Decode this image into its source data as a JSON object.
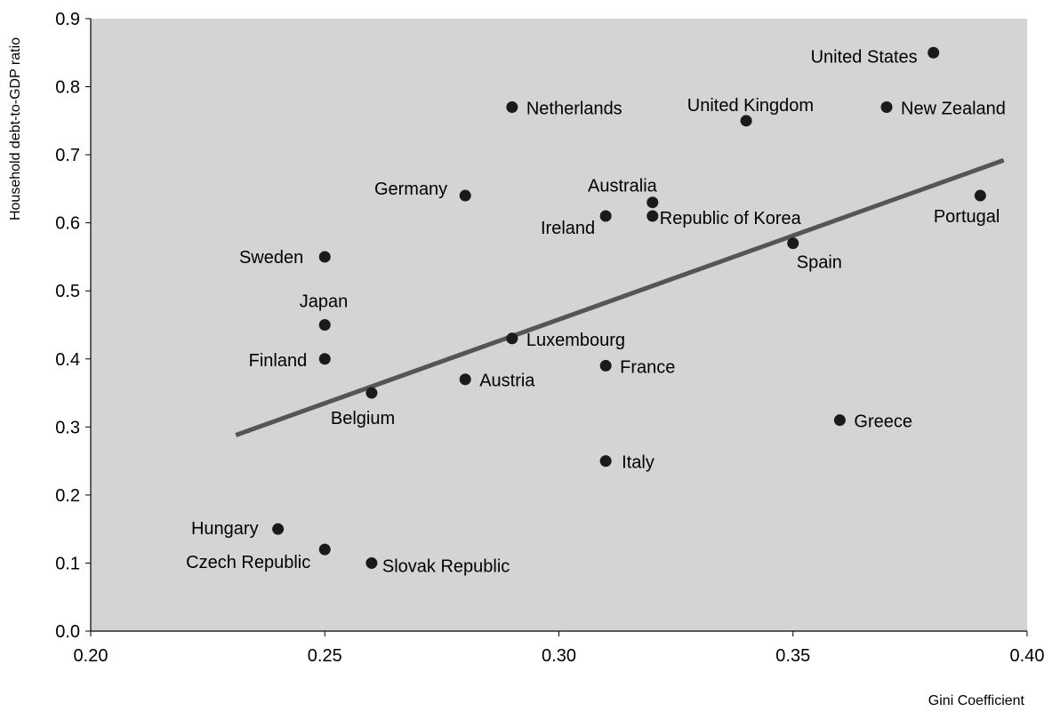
{
  "chart_data": {
    "type": "scatter",
    "title": "",
    "xlabel": "Gini Coefficient",
    "ylabel": "Household debt-to-GDP ratio",
    "xlim": [
      0.2,
      0.4
    ],
    "ylim": [
      0.0,
      0.9
    ],
    "x_ticks": [
      "0.20",
      "0.25",
      "0.30",
      "0.35",
      "0.40"
    ],
    "y_ticks": [
      "0.0",
      "0.1",
      "0.2",
      "0.3",
      "0.4",
      "0.5",
      "0.6",
      "0.7",
      "0.8",
      "0.9"
    ],
    "grid": false,
    "legend": "none",
    "colors": {
      "plot_background": "#d4d4d4",
      "marker": "#1a1a1a",
      "trendline": "#555555"
    },
    "points": [
      {
        "label": "United States",
        "x": 0.38,
        "y": 0.85
      },
      {
        "label": "Netherlands",
        "x": 0.29,
        "y": 0.77
      },
      {
        "label": "United Kingdom",
        "x": 0.34,
        "y": 0.75
      },
      {
        "label": "New Zealand",
        "x": 0.37,
        "y": 0.77
      },
      {
        "label": "Germany",
        "x": 0.28,
        "y": 0.64
      },
      {
        "label": "Australia",
        "x": 0.32,
        "y": 0.63
      },
      {
        "label": "Ireland",
        "x": 0.31,
        "y": 0.61
      },
      {
        "label": "Republic of Korea",
        "x": 0.32,
        "y": 0.61
      },
      {
        "label": "Portugal",
        "x": 0.39,
        "y": 0.64
      },
      {
        "label": "Spain",
        "x": 0.35,
        "y": 0.57
      },
      {
        "label": "Sweden",
        "x": 0.25,
        "y": 0.55
      },
      {
        "label": "Japan",
        "x": 0.25,
        "y": 0.45
      },
      {
        "label": "Luxembourg",
        "x": 0.29,
        "y": 0.43
      },
      {
        "label": "Finland",
        "x": 0.25,
        "y": 0.4
      },
      {
        "label": "France",
        "x": 0.31,
        "y": 0.39
      },
      {
        "label": "Austria",
        "x": 0.28,
        "y": 0.37
      },
      {
        "label": "Belgium",
        "x": 0.26,
        "y": 0.35
      },
      {
        "label": "Greece",
        "x": 0.36,
        "y": 0.31
      },
      {
        "label": "Italy",
        "x": 0.31,
        "y": 0.25
      },
      {
        "label": "Hungary",
        "x": 0.24,
        "y": 0.15
      },
      {
        "label": "Czech Republic",
        "x": 0.25,
        "y": 0.12
      },
      {
        "label": "Slovak Republic",
        "x": 0.26,
        "y": 0.1
      }
    ],
    "trendline": {
      "x": [
        0.231,
        0.395
      ],
      "y": [
        0.288,
        0.692
      ]
    }
  }
}
